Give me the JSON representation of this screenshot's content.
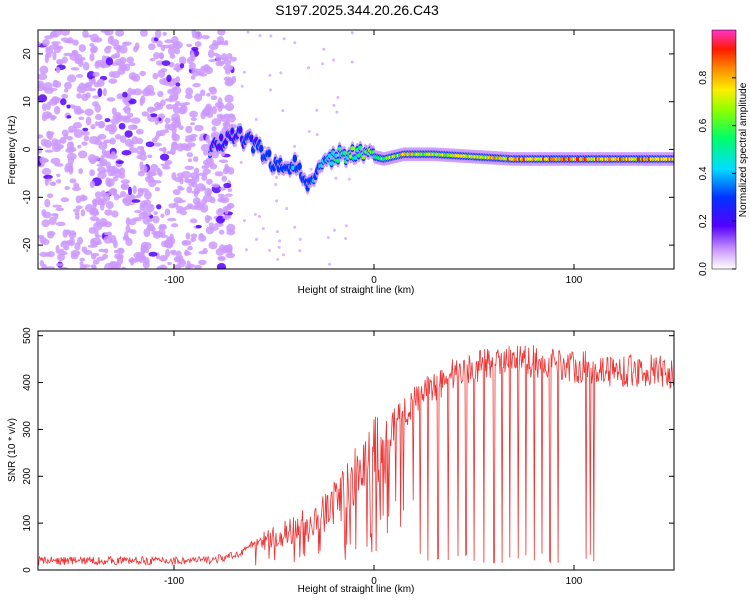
{
  "title": "S197.2025.344.20.26.C43",
  "chart_data": [
    {
      "type": "heatmap",
      "xlabel": "Height of straight line (km)",
      "ylabel": "Frequency (Hz)",
      "xlim": [
        -168,
        150
      ],
      "ylim": [
        -25,
        25
      ],
      "xticks": [
        -100,
        0,
        100
      ],
      "yticks": [
        -20,
        -10,
        0,
        10,
        20
      ],
      "colorbar": {
        "label": "Normalized spectral amplitude",
        "range": [
          0,
          1
        ],
        "ticks": [
          0.0,
          0.2,
          0.4,
          0.6,
          0.8
        ]
      },
      "noise_region_x": [
        -168,
        -70
      ],
      "signal_band": [
        {
          "x": -82,
          "f": 0,
          "amp": 0.2
        },
        {
          "x": -70,
          "f": 3,
          "amp": 0.3
        },
        {
          "x": -62,
          "f": 2,
          "amp": 0.35
        },
        {
          "x": -55,
          "f": -1,
          "amp": 0.4
        },
        {
          "x": -48,
          "f": -4,
          "amp": 0.4
        },
        {
          "x": -40,
          "f": -3,
          "amp": 0.45
        },
        {
          "x": -33,
          "f": -7,
          "amp": 0.4
        },
        {
          "x": -25,
          "f": -2,
          "amp": 0.5
        },
        {
          "x": -15,
          "f": -1,
          "amp": 0.7
        },
        {
          "x": -5,
          "f": -1,
          "amp": 0.7
        },
        {
          "x": 5,
          "f": -2,
          "amp": 0.75
        },
        {
          "x": 15,
          "f": -1,
          "amp": 0.9
        },
        {
          "x": 30,
          "f": -1,
          "amp": 0.8
        },
        {
          "x": 50,
          "f": -1.5,
          "amp": 0.85
        },
        {
          "x": 70,
          "f": -2,
          "amp": 0.95
        },
        {
          "x": 90,
          "f": -2,
          "amp": 0.95
        },
        {
          "x": 110,
          "f": -2,
          "amp": 0.95
        },
        {
          "x": 130,
          "f": -2,
          "amp": 0.95
        },
        {
          "x": 150,
          "f": -2,
          "amp": 0.95
        }
      ]
    },
    {
      "type": "line",
      "xlabel": "Height of straight line (km)",
      "ylabel": "SNR (10 * v/v)",
      "xlim": [
        -168,
        150
      ],
      "ylim": [
        0,
        510
      ],
      "xticks": [
        -100,
        0,
        100
      ],
      "yticks": [
        0,
        100,
        200,
        300,
        400,
        500
      ],
      "series_color": "#ee3333",
      "series": [
        {
          "name": "SNR",
          "x": [
            -168,
            -150,
            -130,
            -110,
            -90,
            -80,
            -70,
            -60,
            -50,
            -40,
            -30,
            -20,
            -10,
            0,
            10,
            20,
            30,
            40,
            50,
            60,
            70,
            80,
            90,
            100,
            110,
            120,
            130,
            140,
            150
          ],
          "values": [
            20,
            20,
            20,
            20,
            20,
            22,
            30,
            55,
            70,
            85,
            110,
            140,
            190,
            240,
            310,
            360,
            390,
            420,
            435,
            440,
            445,
            445,
            440,
            435,
            430,
            425,
            425,
            425,
            420
          ]
        }
      ],
      "dropouts_x": [
        23,
        27,
        32,
        37,
        42,
        46,
        50,
        55,
        60,
        64,
        68,
        72,
        76,
        80,
        84,
        88,
        92,
        106,
        108,
        110
      ]
    }
  ]
}
